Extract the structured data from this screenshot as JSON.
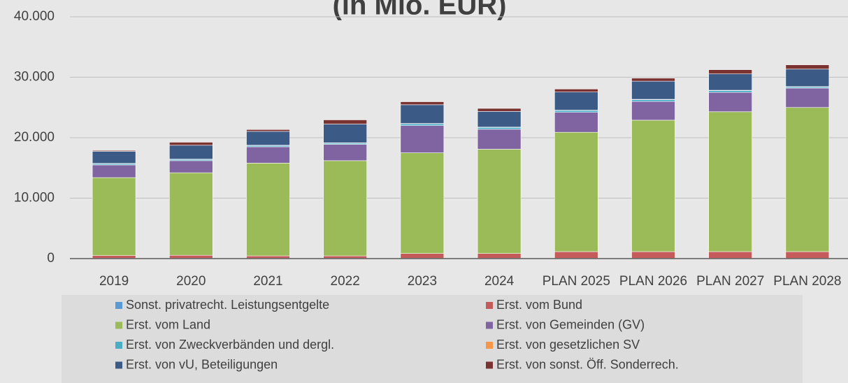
{
  "chart_data": {
    "type": "stacked_bar",
    "title": "(in Mio. EUR)",
    "categories": [
      "2019",
      "2020",
      "2021",
      "2022",
      "2023",
      "2024",
      "PLAN 2025",
      "PLAN 2026",
      "PLAN 2027",
      "PLAN 2028"
    ],
    "series": [
      {
        "name": "Sonst. privatrecht. Leistungsentgelte",
        "color": "#5b9bd5",
        "values": [
          50,
          50,
          50,
          50,
          50,
          50,
          50,
          50,
          50,
          50
        ]
      },
      {
        "name": "Erst. vom Bund",
        "color": "#c55a5a",
        "values": [
          450,
          500,
          400,
          400,
          800,
          800,
          1100,
          1100,
          1100,
          1100
        ]
      },
      {
        "name": "Erst. vom Land",
        "color": "#9bbb59",
        "values": [
          12900,
          13650,
          15350,
          15750,
          16650,
          17250,
          19750,
          21750,
          23150,
          23850
        ]
      },
      {
        "name": "Erst. von Gemeinden (GV)",
        "color": "#8064a2",
        "values": [
          2100,
          2000,
          2700,
          2700,
          4500,
          3300,
          3300,
          3100,
          3200,
          3200
        ]
      },
      {
        "name": "Erst. von Zweckverbänden und dergl.",
        "color": "#4bacc6",
        "values": [
          200,
          200,
          200,
          200,
          300,
          300,
          300,
          300,
          300,
          200
        ]
      },
      {
        "name": "Erst. von gesetzlichen SV",
        "color": "#f79646",
        "values": [
          50,
          50,
          50,
          50,
          50,
          50,
          50,
          50,
          50,
          50
        ]
      },
      {
        "name": "Erst. von vU, Beteiligungen",
        "color": "#3b5a86",
        "values": [
          2000,
          2300,
          2300,
          3100,
          3100,
          2600,
          3000,
          3000,
          2700,
          2900
        ]
      },
      {
        "name": "Erst. von sonst. Öff. Sonderrech.",
        "color": "#7a3330",
        "values": [
          150,
          500,
          300,
          700,
          500,
          500,
          500,
          500,
          700,
          700
        ]
      }
    ],
    "ylim": [
      0,
      40000
    ],
    "yticks": [
      0,
      {
        "value": 10000,
        "label": "10.000"
      },
      {
        "value": 20000,
        "label": "20.000"
      },
      {
        "value": 30000,
        "label": "30.000"
      },
      {
        "value": 40000,
        "label": "40.000"
      }
    ],
    "grid": true,
    "legend": "bottom"
  }
}
